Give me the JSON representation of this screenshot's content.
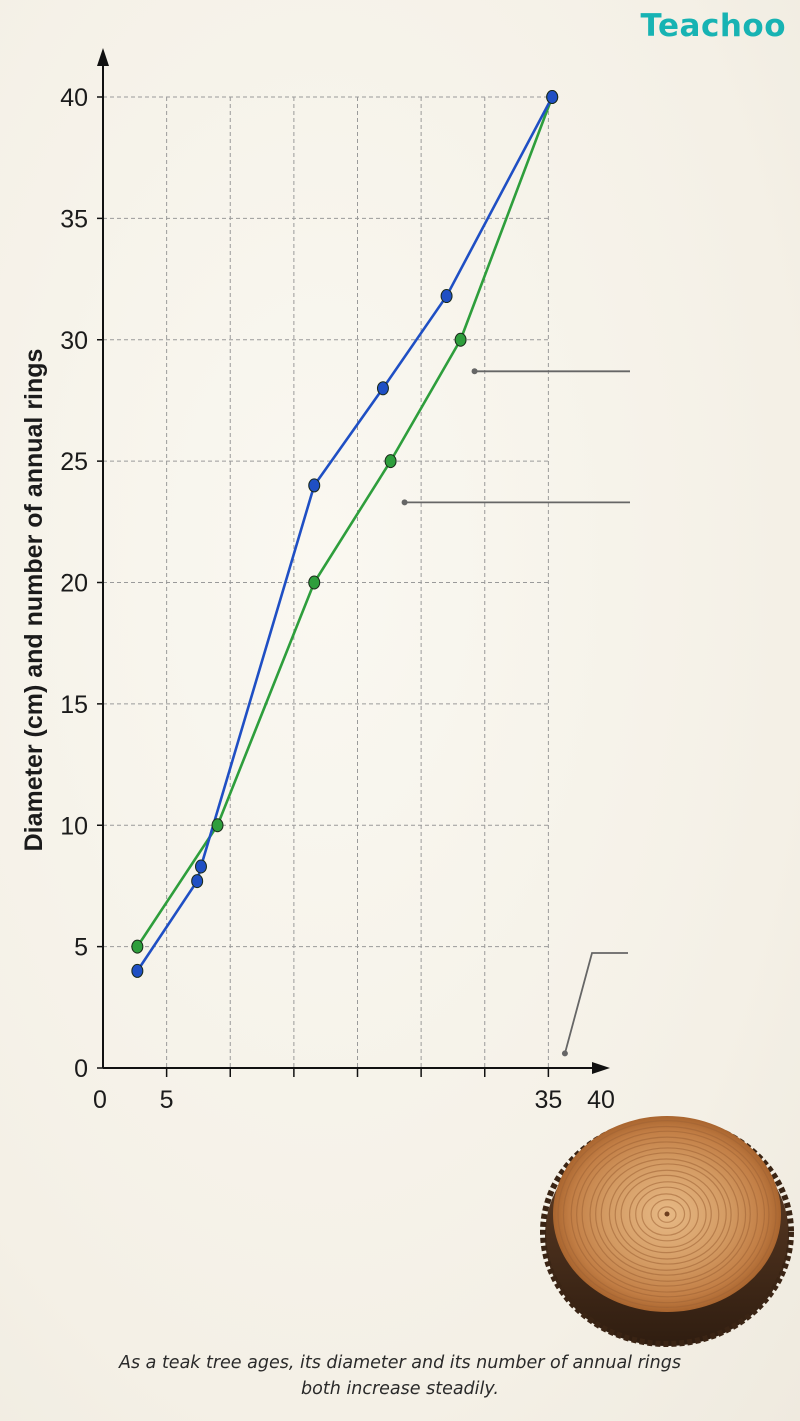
{
  "brand": {
    "name": "Teachoo"
  },
  "caption": {
    "line1": "As a teak tree ages, its diameter and its number of annual rings",
    "line2": "both increase steadily."
  },
  "colors": {
    "diameter_series": "#1f4fc4",
    "rings_series": "#2e9e3c",
    "grid": "#9a9a9a",
    "axis": "#111111",
    "leader_line": "#666666",
    "brand": "#17b3b3"
  },
  "icons": {
    "tree_slice": "teak-tree-slice-illustration"
  },
  "chart_data": {
    "type": "line",
    "title": "",
    "xlabel": "",
    "ylabel": "Diameter (cm) and number of annual rings",
    "xlim": [
      0,
      40
    ],
    "ylim": [
      0,
      40
    ],
    "x_ticks_labeled": [
      0,
      5,
      35,
      40
    ],
    "x_ticks_marks": [
      5,
      10,
      15,
      20,
      25,
      30,
      35
    ],
    "y_ticks": [
      0,
      5,
      10,
      15,
      20,
      25,
      30,
      35,
      40
    ],
    "grid": true,
    "series": [
      {
        "color": "blue",
        "points": [
          [
            2.7,
            4
          ],
          [
            7.4,
            7.7
          ],
          [
            7.7,
            8.3
          ],
          [
            16.6,
            24
          ],
          [
            22,
            28
          ],
          [
            27,
            31.8
          ],
          [
            35.3,
            40
          ]
        ]
      },
      {
        "color": "green",
        "points": [
          [
            2.7,
            5
          ],
          [
            9,
            10
          ],
          [
            16.6,
            20
          ],
          [
            22.6,
            25
          ],
          [
            28.1,
            30
          ],
          [
            35.3,
            40
          ]
        ]
      }
    ],
    "annotation_leaders": [
      {
        "from": [
          29.2,
          28.7
        ],
        "to_right": true
      },
      {
        "from": [
          23.7,
          23.3
        ],
        "to_right": true
      },
      {
        "from": [
          36.3,
          0.6
        ],
        "to_right": true,
        "elbow": true
      }
    ]
  }
}
